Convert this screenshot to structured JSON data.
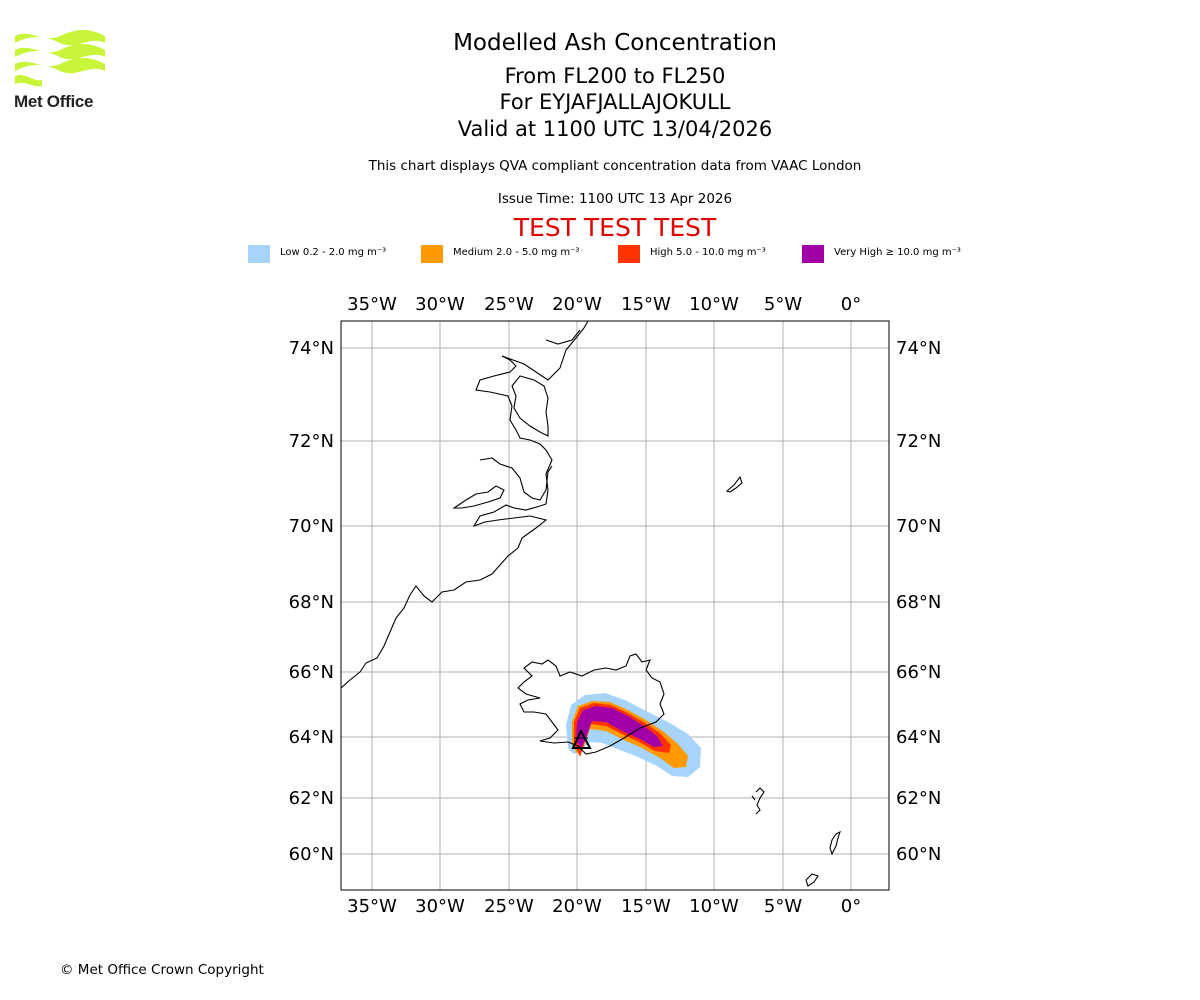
{
  "header": {
    "logo_text": "Met Office",
    "title": "Modelled Ash Concentration",
    "level_range": "From FL200 to FL250",
    "volcano_line": "For EYJAFJALLAJOKULL",
    "valid_time": "Valid at 1100 UTC 13/04/2026",
    "description": "This chart displays QVA compliant concentration data from VAAC London",
    "issue_time": "Issue Time: 1100 UTC 13 Apr 2026",
    "test_banner": "TEST TEST TEST"
  },
  "legend": [
    {
      "label": "Low 0.2 - 2.0 mg m⁻³",
      "color": "#a6d4fa"
    },
    {
      "label": "Medium 2.0 - 5.0 mg m⁻³",
      "color": "#ff9900"
    },
    {
      "label": "High 5.0 - 10.0 mg m⁻³",
      "color": "#ff3300"
    },
    {
      "label": "Very High ≥ 10.0 mg m⁻³",
      "color": "#a100a8"
    }
  ],
  "map": {
    "lon_labels": [
      "35°W",
      "30°W",
      "25°W",
      "20°W",
      "15°W",
      "10°W",
      "5°W",
      "0°"
    ],
    "lat_labels": [
      "74°N",
      "72°N",
      "70°N",
      "68°N",
      "66°N",
      "64°N",
      "62°N",
      "60°N"
    ],
    "volcano_marker": "volcano-triangle-icon"
  },
  "footer": {
    "copyright": "© Met Office Crown Copyright"
  }
}
